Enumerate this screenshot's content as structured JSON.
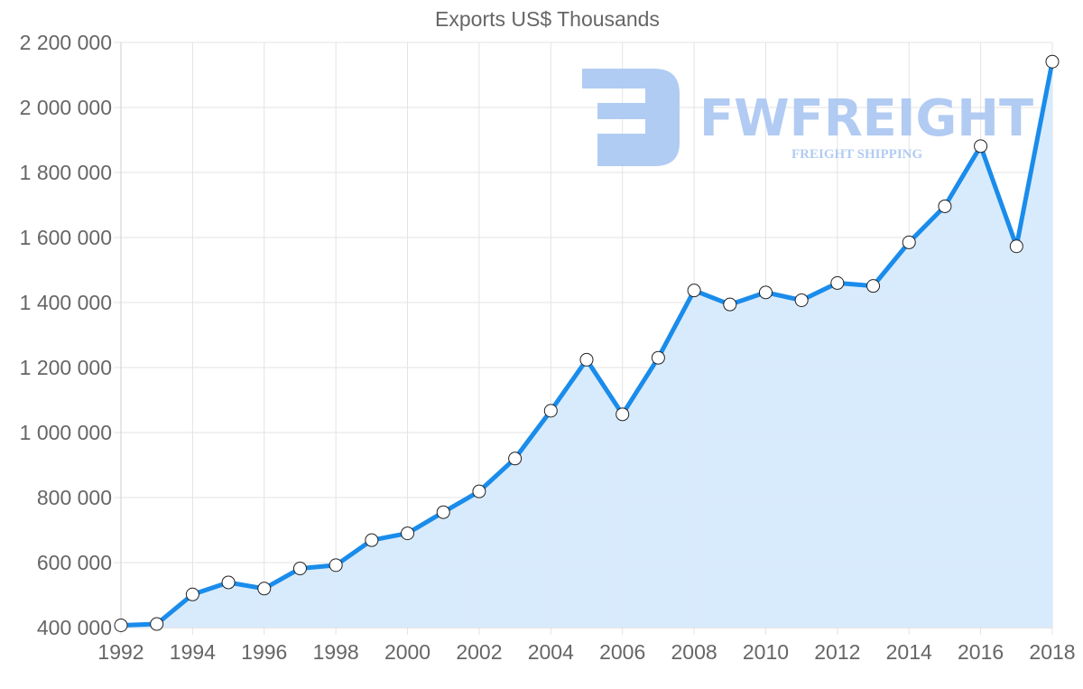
{
  "chart_data": {
    "type": "area",
    "title": "Exports US$ Thousands",
    "xlabel": "",
    "ylabel": "",
    "x": [
      1992,
      1993,
      1994,
      1995,
      1996,
      1997,
      1998,
      1999,
      2000,
      2001,
      2002,
      2003,
      2004,
      2005,
      2006,
      2007,
      2008,
      2009,
      2010,
      2011,
      2012,
      2013,
      2014,
      2015,
      2016,
      2017,
      2018
    ],
    "series": [
      {
        "name": "Exports US$ Thousands",
        "values": [
          407000,
          411000,
          502000,
          539000,
          520000,
          582000,
          592000,
          669000,
          690000,
          755000,
          819000,
          920000,
          1067000,
          1224000,
          1056000,
          1230000,
          1437000,
          1394000,
          1431000,
          1407000,
          1460000,
          1451000,
          1585000,
          1696000,
          1881000,
          1573000,
          2141000
        ],
        "color": "#1a8ceb",
        "fill": "#d6eafc"
      }
    ],
    "xlim": [
      1992,
      2018
    ],
    "ylim": [
      400000,
      2200000
    ],
    "x_ticks": [
      "1992",
      "1994",
      "1996",
      "1998",
      "2000",
      "2002",
      "2004",
      "2006",
      "2008",
      "2010",
      "2012",
      "2014",
      "2016",
      "2018"
    ],
    "y_ticks": [
      "400 000",
      "600 000",
      "800 000",
      "1 000 000",
      "1 200 000",
      "1 400 000",
      "1 600 000",
      "1 800 000",
      "2 000 000",
      "2 200 000"
    ],
    "y_tick_values": [
      400000,
      600000,
      800000,
      1000000,
      1200000,
      1400000,
      1600000,
      1800000,
      2000000,
      2200000
    ],
    "grid": true,
    "legend": "none"
  },
  "watermark": {
    "brand": "FWFREIGHT",
    "tagline": "FREIGHT SHIPPING",
    "color": "#a9c6f2"
  }
}
